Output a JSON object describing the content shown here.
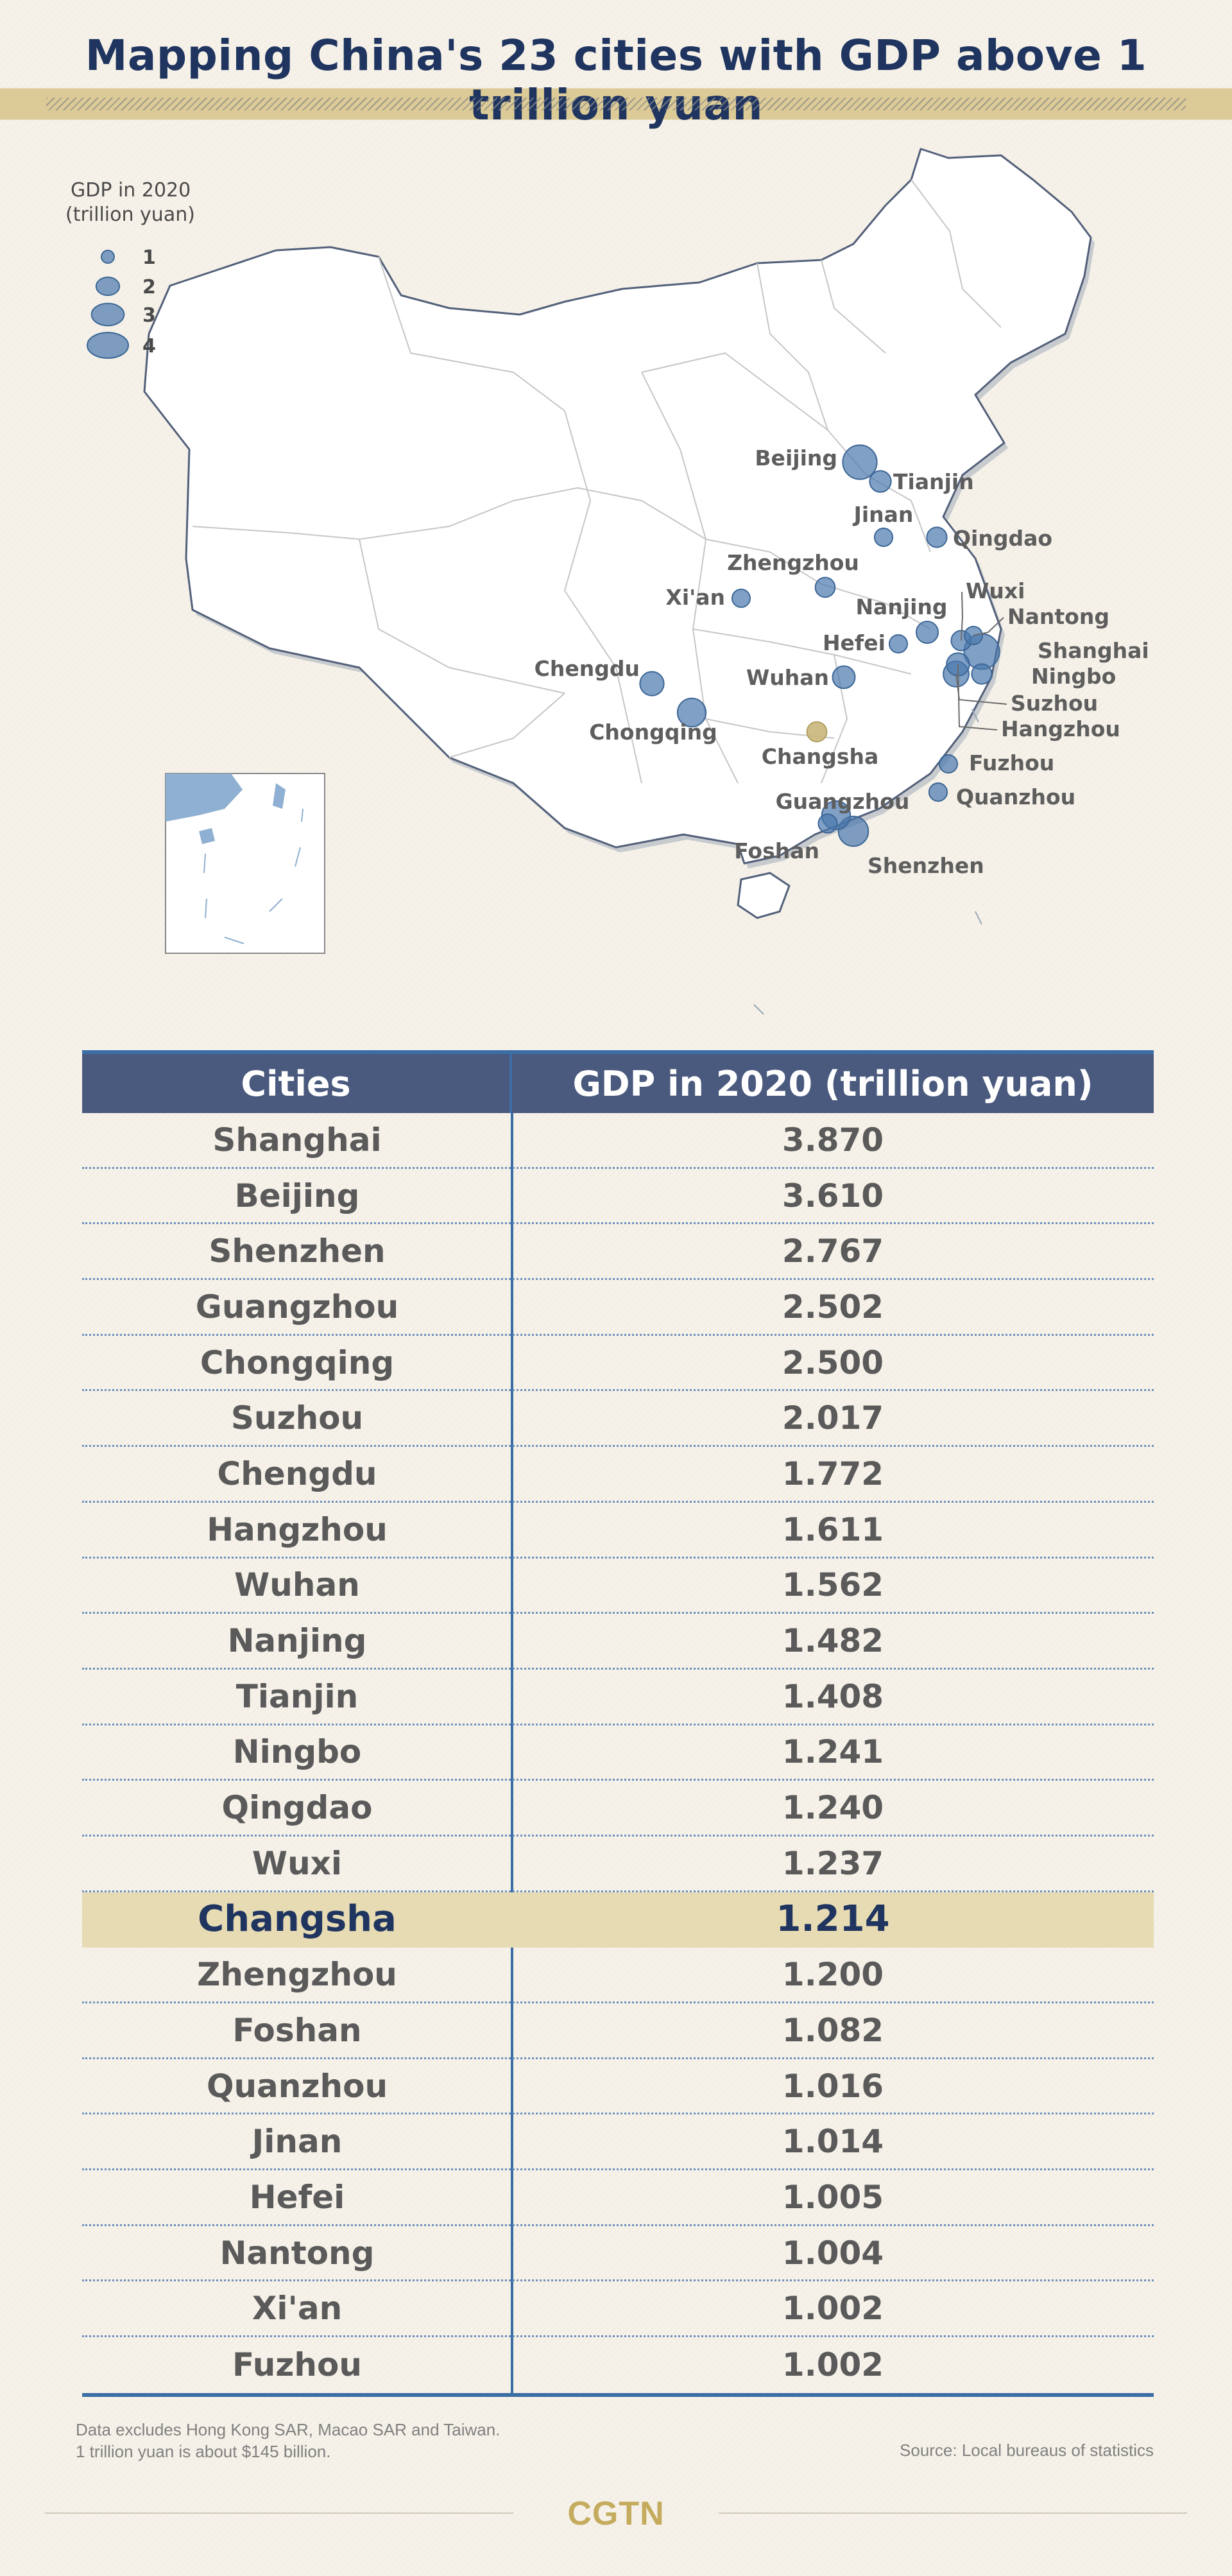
{
  "title": "Mapping China's 23 cities with GDP above 1 trillion yuan",
  "map": {
    "legend": {
      "title_line1": "GDP in 2020",
      "title_line2": "(trillion yuan)",
      "sizes": [
        "1",
        "2",
        "3",
        "4"
      ]
    },
    "bubble_color": "#4a78ac",
    "highlight_color": "#c9b679",
    "cities": [
      {
        "name": "Beijing"
      },
      {
        "name": "Tianjin"
      },
      {
        "name": "Jinan"
      },
      {
        "name": "Qingdao"
      },
      {
        "name": "Zhengzhou"
      },
      {
        "name": "Xi'an"
      },
      {
        "name": "Nanjing"
      },
      {
        "name": "Wuxi"
      },
      {
        "name": "Nantong"
      },
      {
        "name": "Hefei"
      },
      {
        "name": "Shanghai"
      },
      {
        "name": "Chengdu"
      },
      {
        "name": "Wuhan"
      },
      {
        "name": "Ningbo"
      },
      {
        "name": "Suzhou"
      },
      {
        "name": "Hangzhou"
      },
      {
        "name": "Chongqing"
      },
      {
        "name": "Changsha"
      },
      {
        "name": "Fuzhou"
      },
      {
        "name": "Quanzhou"
      },
      {
        "name": "Guangzhou"
      },
      {
        "name": "Foshan"
      },
      {
        "name": "Shenzhen"
      }
    ]
  },
  "table": {
    "headers": [
      "Cities",
      "GDP in 2020 (trillion yuan)"
    ],
    "highlight": "Changsha",
    "rows": [
      {
        "city": "Shanghai",
        "gdp": "3.870"
      },
      {
        "city": "Beijing",
        "gdp": "3.610"
      },
      {
        "city": "Shenzhen",
        "gdp": "2.767"
      },
      {
        "city": "Guangzhou",
        "gdp": "2.502"
      },
      {
        "city": "Chongqing",
        "gdp": "2.500"
      },
      {
        "city": "Suzhou",
        "gdp": "2.017"
      },
      {
        "city": "Chengdu",
        "gdp": "1.772"
      },
      {
        "city": "Hangzhou",
        "gdp": "1.611"
      },
      {
        "city": "Wuhan",
        "gdp": "1.562"
      },
      {
        "city": "Nanjing",
        "gdp": "1.482"
      },
      {
        "city": "Tianjin",
        "gdp": "1.408"
      },
      {
        "city": "Ningbo",
        "gdp": "1.241"
      },
      {
        "city": "Qingdao",
        "gdp": "1.240"
      },
      {
        "city": "Wuxi",
        "gdp": "1.237"
      },
      {
        "city": "Changsha",
        "gdp": "1.214"
      },
      {
        "city": "Zhengzhou",
        "gdp": "1.200"
      },
      {
        "city": "Foshan",
        "gdp": "1.082"
      },
      {
        "city": "Quanzhou",
        "gdp": "1.016"
      },
      {
        "city": "Jinan",
        "gdp": "1.014"
      },
      {
        "city": "Hefei",
        "gdp": "1.005"
      },
      {
        "city": "Nantong",
        "gdp": "1.004"
      },
      {
        "city": "Xi'an",
        "gdp": "1.002"
      },
      {
        "city": "Fuzhou",
        "gdp": "1.002"
      }
    ]
  },
  "footer": {
    "note_line1": "Data excludes Hong Kong SAR, Macao SAR and Taiwan.",
    "note_line2": "1 trillion yuan is about $145 billion.",
    "source": "Source: Local bureaus of statistics",
    "brand": "CGTN"
  }
}
